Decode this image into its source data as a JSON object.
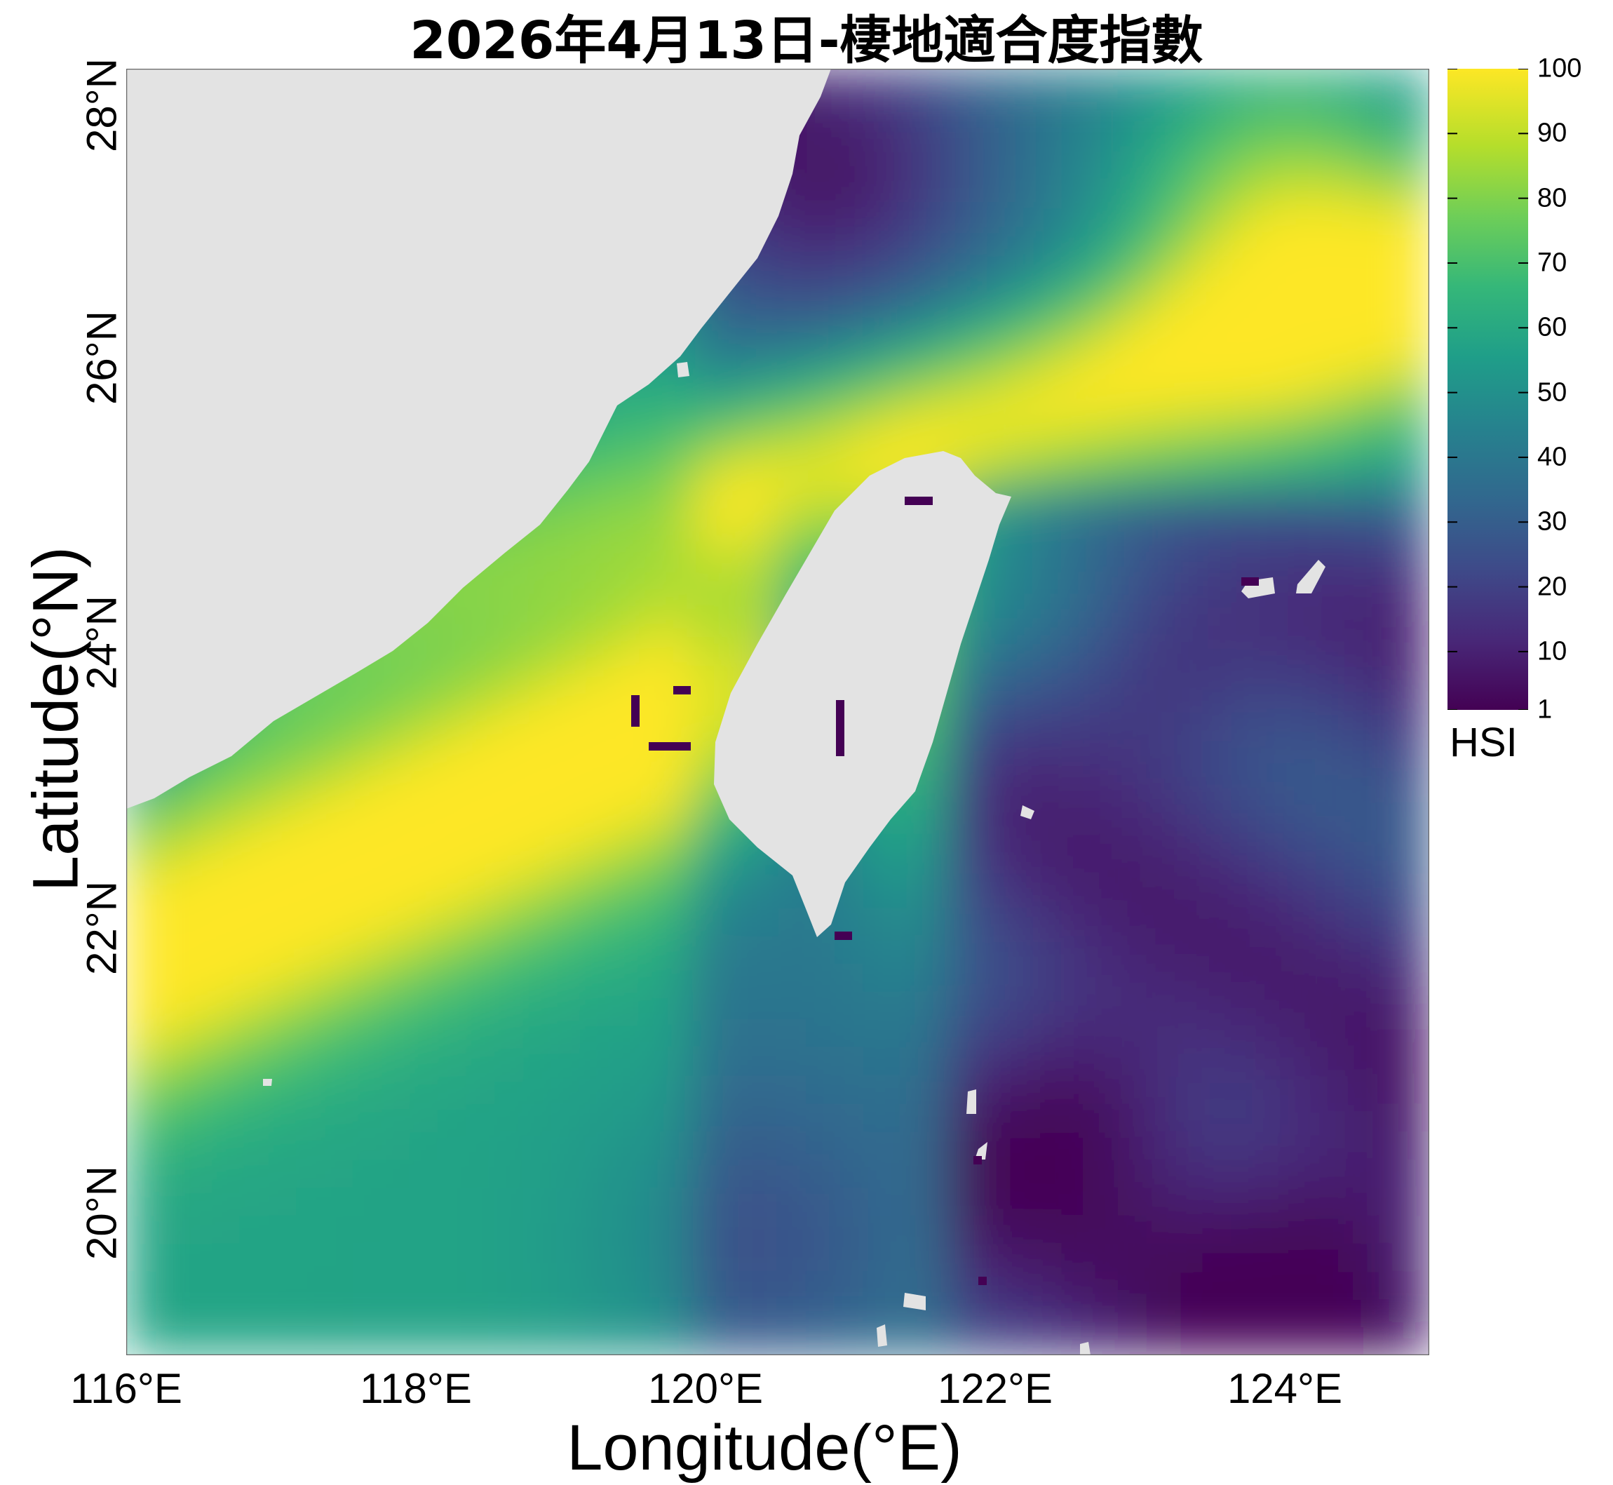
{
  "title": "2026年4月13日-棲地適合度指數",
  "x_axis": {
    "label": "Longitude(°E)",
    "range": [
      116.0,
      125.0
    ],
    "ticks": [
      {
        "value": 116,
        "label": "116°E"
      },
      {
        "value": 118,
        "label": "118°E"
      },
      {
        "value": 120,
        "label": "120°E"
      },
      {
        "value": 122,
        "label": "122°E"
      },
      {
        "value": 124,
        "label": "124°E"
      }
    ]
  },
  "y_axis": {
    "label": "Latitude(°N)",
    "range": [
      19.0,
      28.0
    ],
    "ticks": [
      {
        "value": 20,
        "label": "20°N"
      },
      {
        "value": 22,
        "label": "22°N"
      },
      {
        "value": 24,
        "label": "24°N"
      },
      {
        "value": 26,
        "label": "26°N"
      },
      {
        "value": 28,
        "label": "28°N"
      }
    ]
  },
  "colorbar": {
    "label": "HSI",
    "range": [
      1,
      100
    ],
    "colormap": "viridis",
    "ticks": [
      "1",
      "10",
      "20",
      "30",
      "40",
      "50",
      "60",
      "70",
      "80",
      "90",
      "100"
    ],
    "tick_values": [
      1,
      10,
      20,
      30,
      40,
      50,
      60,
      70,
      80,
      90,
      100
    ]
  },
  "colors": {
    "land": "#e3e3e3",
    "frame": "#666666",
    "viridis": [
      "#440154",
      "#482878",
      "#3e4a89",
      "#31688e",
      "#26828e",
      "#1f9e89",
      "#35b779",
      "#6ece58",
      "#b5de2b",
      "#fde725"
    ]
  },
  "chart_data": {
    "type": "heatmap",
    "variable": "HSI",
    "xlim": [
      116.0,
      125.0
    ],
    "ylim": [
      19.0,
      28.0
    ],
    "vmin": 1,
    "vmax": 100
  }
}
